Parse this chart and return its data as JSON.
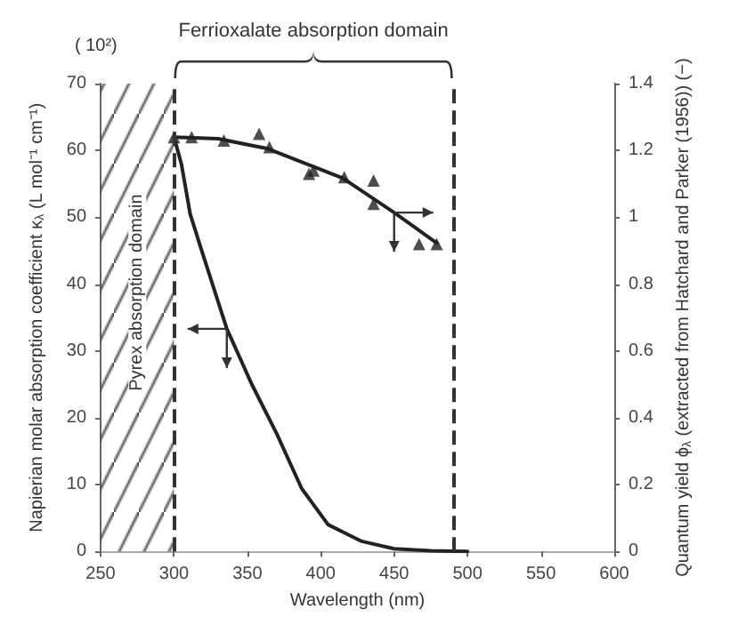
{
  "chart_data": {
    "type": "line",
    "xlabel": "Wavelength (nm)",
    "ylabel": "Napierian molar absorption coefficient κ$_{λ}$ (L mol⁻¹ cm⁻¹)",
    "y2label": "Quantum yield ϕ$_{λ}$ (extracted from Hatchard and Parker (1956)) (−)",
    "annotations": [
      "Ferrioxalate absorption domain",
      "( 10²)"
    ],
    "xlim": [
      250,
      600
    ],
    "xticks": [
      250,
      300,
      350,
      400,
      450,
      500,
      550,
      600
    ],
    "ylim": [
      0,
      70
    ],
    "yticks": [
      0,
      10,
      20,
      30,
      40,
      50,
      60,
      70
    ],
    "y2lim": [
      0,
      1.4
    ],
    "y2ticks": [
      0,
      0.2,
      0.4,
      0.6,
      0.8,
      1,
      1.2,
      1.4
    ],
    "grid": false,
    "series": [
      {
        "color": "#222222",
        "marker": "none",
        "line_style": "solid",
        "x": [
          300,
          305,
          311,
          319,
          336,
          353,
          370,
          387,
          405,
          428,
          450,
          475,
          500
        ],
        "values": [
          62,
          58,
          50.5,
          44.9,
          33.3,
          25,
          17.6,
          9.4,
          4.0,
          1.5,
          0.4,
          0.1,
          0
        ]
      },
      {
        "type": "scatter",
        "axis": "y2",
        "color": "#222222",
        "marker": "triangle",
        "x": [
          300,
          312,
          334,
          358,
          365,
          392,
          395,
          416,
          436,
          436,
          467,
          479
        ],
        "values": [
          1.24,
          1.24,
          1.23,
          1.25,
          1.21,
          1.13,
          1.14,
          1.12,
          1.11,
          1.04,
          0.92,
          0.92
        ]
      },
      {
        "axis": "y2",
        "color": "#222222",
        "marker": "none",
        "line_style": "solid",
        "x": [
          300,
          330,
          364,
          415,
          450,
          479
        ],
        "values": [
          1.24,
          1.235,
          1.205,
          1.117,
          1.014,
          0.923
        ]
      }
    ],
    "ref_lines": [
      {
        "axis": "x",
        "value": 300,
        "color": "#333333",
        "line_style": "dashed"
      },
      {
        "axis": "x",
        "value": 490,
        "color": "#333333",
        "line_style": "dashed"
      }
    ],
    "bands": [
      {
        "axis": "x",
        "from": 250,
        "to": 300,
        "label": "Pyrex absorption domain",
        "color": "#333333"
      }
    ]
  }
}
